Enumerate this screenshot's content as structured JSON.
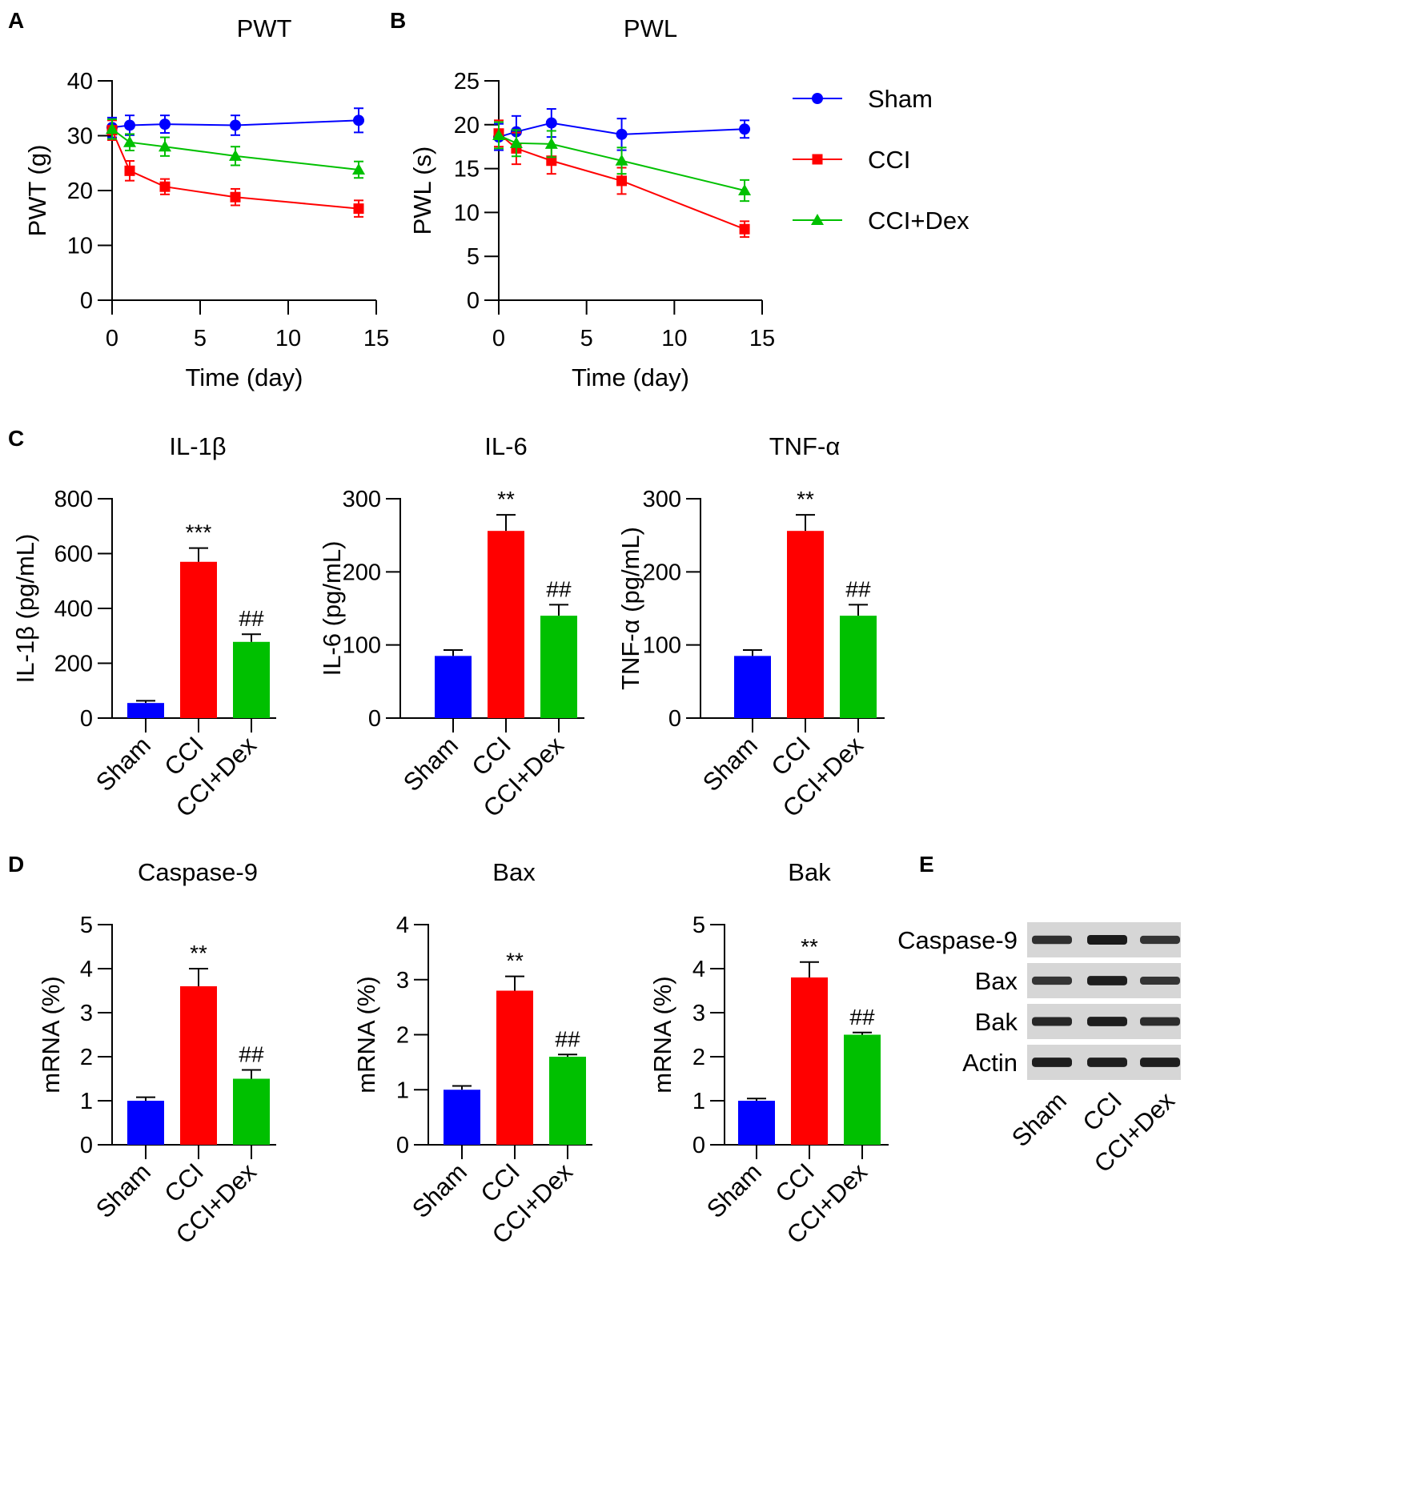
{
  "panels": [
    {
      "letter": "A",
      "chart_data": {
        "type": "line",
        "title": "PWT",
        "xlabel": "Time (day)",
        "ylabel": "PWT (g)",
        "xlim": [
          0,
          15
        ],
        "ylim": [
          0,
          40
        ],
        "xticks": [
          0,
          5,
          10,
          15
        ],
        "yticks": [
          0,
          10,
          20,
          30,
          40
        ],
        "x": [
          0,
          1,
          3,
          7,
          14
        ],
        "series": [
          {
            "name": "Sham",
            "color": "#0000ff",
            "marker": "circle",
            "values": [
              31.5,
              31.9,
              32.1,
              31.9,
              32.8
            ],
            "errors": [
              1.8,
              1.8,
              1.6,
              1.8,
              2.2
            ]
          },
          {
            "name": "CCI",
            "color": "#ff0000",
            "marker": "square",
            "values": [
              31.0,
              23.6,
              20.7,
              18.8,
              16.7
            ],
            "errors": [
              1.8,
              1.8,
              1.4,
              1.5,
              1.5
            ]
          },
          {
            "name": "CCI+Dex",
            "color": "#00c000",
            "marker": "triangle",
            "values": [
              31.2,
              28.8,
              28.0,
              26.3,
              23.8
            ],
            "errors": [
              1.8,
              1.5,
              1.7,
              1.7,
              1.5
            ]
          }
        ]
      }
    },
    {
      "letter": "B",
      "chart_data": {
        "type": "line",
        "title": "PWL",
        "xlabel": "Time (day)",
        "ylabel": "PWL (s)",
        "xlim": [
          0,
          15
        ],
        "ylim": [
          0,
          25
        ],
        "xticks": [
          0,
          5,
          10,
          15
        ],
        "yticks": [
          0,
          5,
          10,
          15,
          20,
          25
        ],
        "x": [
          0,
          1,
          3,
          7,
          14
        ],
        "series": [
          {
            "name": "Sham",
            "color": "#0000ff",
            "marker": "circle",
            "values": [
              18.6,
              19.2,
              20.2,
              18.9,
              19.5
            ],
            "errors": [
              1.5,
              1.8,
              1.6,
              1.8,
              1.0
            ]
          },
          {
            "name": "CCI",
            "color": "#ff0000",
            "marker": "square",
            "values": [
              19.0,
              17.3,
              15.9,
              13.6,
              8.1
            ],
            "errors": [
              1.5,
              1.8,
              1.5,
              1.5,
              0.9
            ]
          },
          {
            "name": "CCI+Dex",
            "color": "#00c000",
            "marker": "triangle",
            "values": [
              18.8,
              17.9,
              17.8,
              15.9,
              12.5
            ],
            "errors": [
              1.5,
              1.5,
              1.5,
              1.5,
              1.2
            ]
          }
        ]
      }
    },
    {
      "letter": "C",
      "chart_data": {
        "type": "bar",
        "title": "IL-1β",
        "ylabel": "IL-1β (pg/mL)",
        "ylim": [
          0,
          800
        ],
        "yticks": [
          0,
          200,
          400,
          600,
          800
        ],
        "categories": [
          "Sham",
          "CCI",
          "CCI+Dex"
        ],
        "values": [
          55,
          570,
          278
        ],
        "errors": [
          8,
          50,
          28
        ],
        "annotations": [
          "",
          "***",
          "##"
        ],
        "colors": [
          "#0000ff",
          "#ff0000",
          "#00c000"
        ]
      }
    },
    {
      "letter": "",
      "chart_data": {
        "type": "bar",
        "title": "IL-6",
        "ylabel": "IL-6 (pg/mL)",
        "ylim": [
          0,
          300
        ],
        "yticks": [
          0,
          100,
          200,
          300
        ],
        "categories": [
          "Sham",
          "CCI",
          "CCI+Dex"
        ],
        "values": [
          85,
          256,
          140
        ],
        "errors": [
          8,
          22,
          15
        ],
        "annotations": [
          "",
          "**",
          "##"
        ],
        "colors": [
          "#0000ff",
          "#ff0000",
          "#00c000"
        ]
      }
    },
    {
      "letter": "",
      "chart_data": {
        "type": "bar",
        "title": "TNF-α",
        "ylabel": "TNF-α (pg/mL)",
        "ylim": [
          0,
          300
        ],
        "yticks": [
          0,
          100,
          200,
          300
        ],
        "categories": [
          "Sham",
          "CCI",
          "CCI+Dex"
        ],
        "values": [
          85,
          256,
          140
        ],
        "errors": [
          8,
          22,
          15
        ],
        "annotations": [
          "",
          "**",
          "##"
        ],
        "colors": [
          "#0000ff",
          "#ff0000",
          "#00c000"
        ]
      }
    },
    {
      "letter": "D",
      "chart_data": {
        "type": "bar",
        "title": "Caspase-9",
        "ylabel": "mRNA (%)",
        "ylim": [
          0,
          5
        ],
        "yticks": [
          0,
          1,
          2,
          3,
          4,
          5
        ],
        "categories": [
          "Sham",
          "CCI",
          "CCI+Dex"
        ],
        "values": [
          1.0,
          3.6,
          1.5
        ],
        "errors": [
          0.08,
          0.4,
          0.2
        ],
        "annotations": [
          "",
          "**",
          "##"
        ],
        "colors": [
          "#0000ff",
          "#ff0000",
          "#00c000"
        ]
      }
    },
    {
      "letter": "",
      "chart_data": {
        "type": "bar",
        "title": "Bax",
        "ylabel": "mRNA (%)",
        "ylim": [
          0,
          4
        ],
        "yticks": [
          0,
          1,
          2,
          3,
          4
        ],
        "categories": [
          "Sham",
          "CCI",
          "CCI+Dex"
        ],
        "values": [
          1.0,
          2.8,
          1.6
        ],
        "errors": [
          0.07,
          0.26,
          0.04
        ],
        "annotations": [
          "",
          "**",
          "##"
        ],
        "colors": [
          "#0000ff",
          "#ff0000",
          "#00c000"
        ]
      }
    },
    {
      "letter": "",
      "chart_data": {
        "type": "bar",
        "title": "Bak",
        "ylabel": "mRNA (%)",
        "ylim": [
          0,
          5
        ],
        "yticks": [
          0,
          1,
          2,
          3,
          4,
          5
        ],
        "categories": [
          "Sham",
          "CCI",
          "CCI+Dex"
        ],
        "values": [
          1.0,
          3.8,
          2.5
        ],
        "errors": [
          0.05,
          0.35,
          0.05
        ],
        "annotations": [
          "",
          "**",
          "##"
        ],
        "colors": [
          "#0000ff",
          "#ff0000",
          "#00c000"
        ]
      }
    }
  ],
  "legend": [
    {
      "name": "Sham",
      "color": "#0000ff",
      "marker": "circle"
    },
    {
      "name": "CCI",
      "color": "#ff0000",
      "marker": "square"
    },
    {
      "name": "CCI+Dex",
      "color": "#00c000",
      "marker": "triangle"
    }
  ],
  "blot": {
    "letter": "E",
    "rows": [
      {
        "label": "Caspase-9",
        "intensity": [
          0.75,
          1.0,
          0.7
        ]
      },
      {
        "label": "Bax",
        "intensity": [
          0.7,
          0.95,
          0.68
        ]
      },
      {
        "label": "Bak",
        "intensity": [
          0.85,
          0.95,
          0.8
        ]
      },
      {
        "label": "Actin",
        "intensity": [
          0.95,
          0.95,
          0.95
        ]
      }
    ],
    "lanes": [
      "Sham",
      "CCI",
      "CCI+Dex"
    ]
  }
}
